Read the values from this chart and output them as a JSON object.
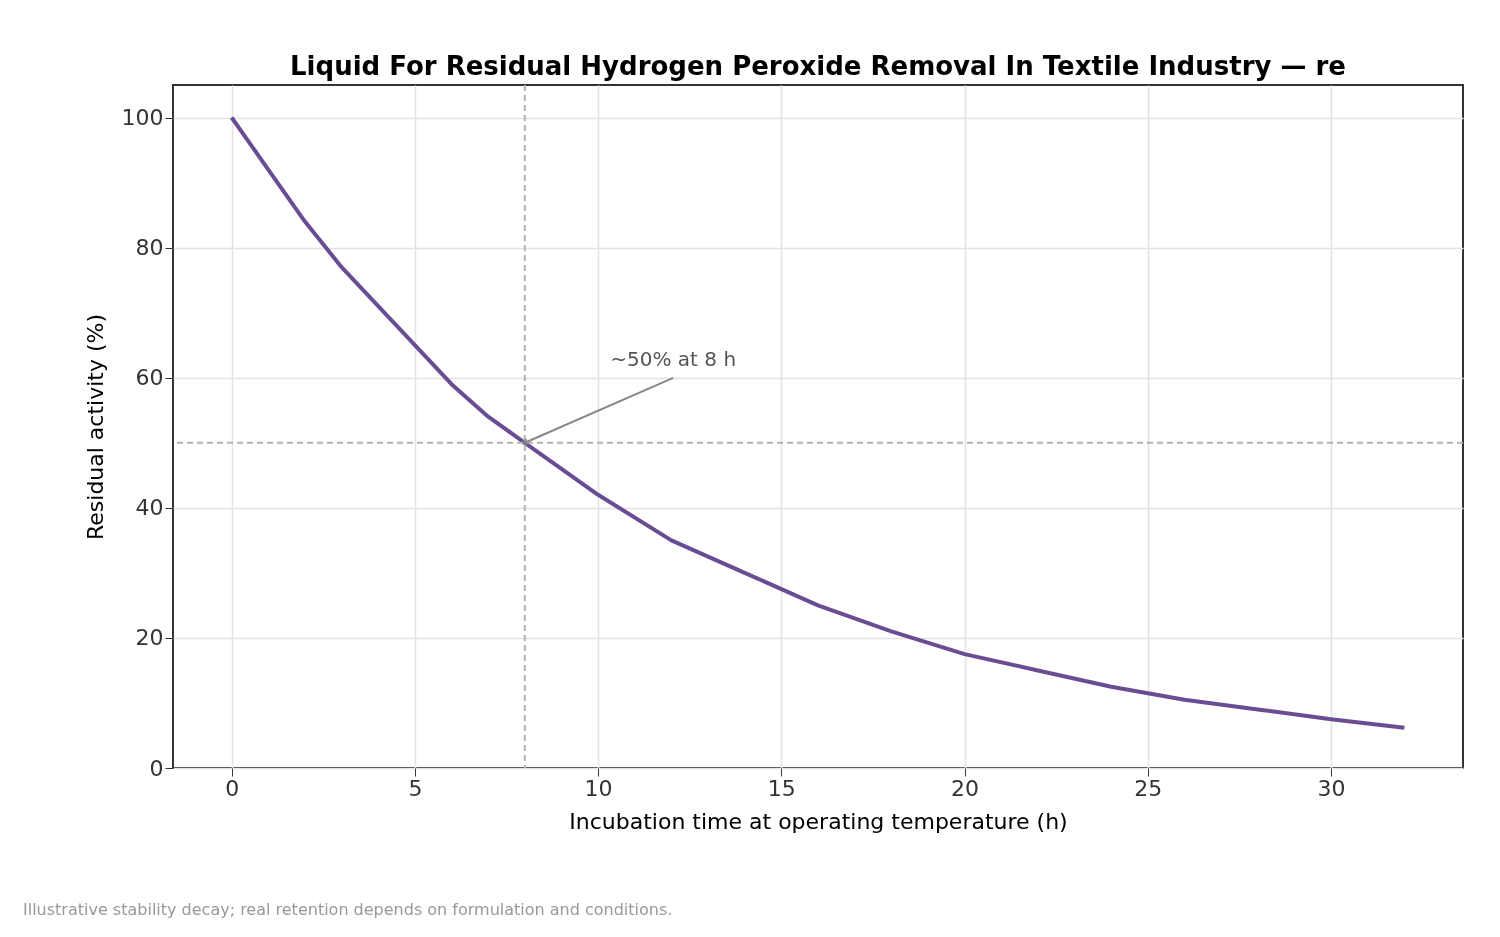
{
  "chart_data": {
    "type": "line",
    "title": "Liquid For Residual Hydrogen Peroxide Removal In Textile Industry — re",
    "xlabel": "Incubation time at operating temperature (h)",
    "ylabel": "Residual activity (%)",
    "series": [
      {
        "color": "#6a4c93",
        "x": [
          0,
          1,
          2,
          3,
          4,
          5,
          6,
          7,
          8,
          9,
          10,
          12,
          14,
          16,
          18,
          20,
          22,
          24,
          26,
          28,
          30,
          32
        ],
        "values": [
          100,
          92,
          84,
          77,
          71,
          65,
          59,
          54,
          50,
          46,
          42,
          35,
          30,
          25,
          21,
          17.5,
          15,
          12.5,
          10.5,
          9,
          7.5,
          6.2
        ]
      }
    ],
    "xlim": [
      -1.6,
      33.6
    ],
    "ylim": [
      0,
      105
    ],
    "xticks": [
      0,
      5,
      10,
      15,
      20,
      25,
      30
    ],
    "yticks": [
      0,
      20,
      40,
      60,
      80,
      100
    ],
    "grid": true,
    "marker": "none",
    "line_style": "solid",
    "ref_lines": [
      {
        "axis": "x",
        "value": 8,
        "color": "#b3b3b3",
        "line_style": "dashed"
      },
      {
        "axis": "y",
        "value": 50,
        "color": "#b3b3b3",
        "line_style": "dashed"
      }
    ],
    "annotations": [
      {
        "text": "~50% at 8 h",
        "x": 8,
        "y": 50
      },
      "Illustrative stability decay; real retention depends on formulation and conditions."
    ]
  }
}
